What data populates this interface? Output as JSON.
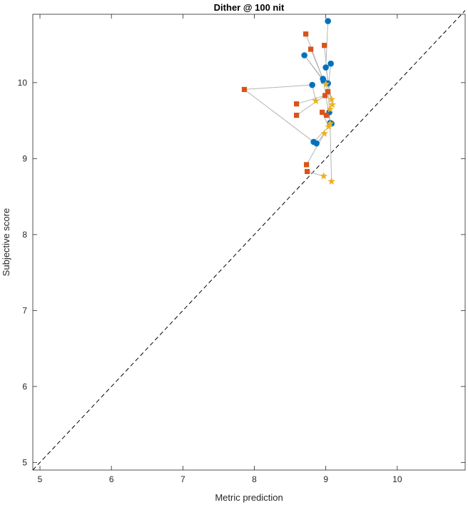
{
  "chart_data": {
    "type": "scatter",
    "title": "Dither @ 100 nit",
    "xlabel": "Metric prediction",
    "ylabel": "Subjective score",
    "xlim": [
      4.9,
      10.95
    ],
    "ylim": [
      4.9,
      10.9
    ],
    "xticks": [
      5,
      6,
      7,
      8,
      9,
      10
    ],
    "yticks": [
      5,
      6,
      7,
      8,
      9,
      10
    ],
    "grid": false,
    "box": true,
    "reference_line": {
      "style": "dashed",
      "from": [
        4.9,
        4.9
      ],
      "to": [
        10.95,
        10.95
      ],
      "color": "#000000"
    },
    "connector_color": "#b5b5b5",
    "series": [
      {
        "marker": "circle",
        "color": "#0072BD",
        "points": [
          [
            9.03,
            10.81
          ],
          [
            8.7,
            10.36
          ],
          [
            9.07,
            10.25
          ],
          [
            9.0,
            10.2
          ],
          [
            8.96,
            10.05
          ],
          [
            8.81,
            9.97
          ],
          [
            9.03,
            9.99
          ],
          [
            8.97,
            10.02
          ],
          [
            9.05,
            9.61
          ],
          [
            9.06,
            9.47
          ],
          [
            9.08,
            9.46
          ],
          [
            8.83,
            9.22
          ],
          [
            8.87,
            9.2
          ]
        ]
      },
      {
        "marker": "square",
        "color": "#D95319",
        "points": [
          [
            8.72,
            10.64
          ],
          [
            8.98,
            10.49
          ],
          [
            8.79,
            10.44
          ],
          [
            7.86,
            9.91
          ],
          [
            9.03,
            9.88
          ],
          [
            8.99,
            9.83
          ],
          [
            8.59,
            9.72
          ],
          [
            8.59,
            9.57
          ],
          [
            8.95,
            9.61
          ],
          [
            9.01,
            9.57
          ],
          [
            8.73,
            8.92
          ],
          [
            8.74,
            8.83
          ]
        ]
      },
      {
        "marker": "star",
        "color": "#EDB120",
        "points": [
          [
            9.0,
            9.98
          ],
          [
            9.08,
            9.78
          ],
          [
            8.86,
            9.76
          ],
          [
            9.09,
            9.71
          ],
          [
            9.06,
            9.65
          ],
          [
            9.06,
            9.46
          ],
          [
            9.04,
            9.42
          ],
          [
            8.98,
            9.33
          ],
          [
            8.97,
            8.77
          ],
          [
            9.08,
            8.7
          ]
        ]
      }
    ],
    "connections": [
      [
        [
          9.03,
          10.81
        ],
        [
          9.0,
          10.2
        ]
      ],
      [
        [
          8.7,
          10.36
        ],
        [
          8.98,
          10.02
        ]
      ],
      [
        [
          8.7,
          10.36
        ],
        [
          9.0,
          9.98
        ]
      ],
      [
        [
          8.72,
          10.64
        ],
        [
          8.96,
          10.05
        ]
      ],
      [
        [
          8.79,
          10.44
        ],
        [
          8.96,
          10.05
        ]
      ],
      [
        [
          8.98,
          10.49
        ],
        [
          9.03,
          9.99
        ]
      ],
      [
        [
          9.07,
          10.25
        ],
        [
          9.03,
          9.88
        ]
      ],
      [
        [
          7.86,
          9.91
        ],
        [
          8.81,
          9.97
        ]
      ],
      [
        [
          7.86,
          9.91
        ],
        [
          8.83,
          9.22
        ]
      ],
      [
        [
          8.81,
          9.97
        ],
        [
          8.86,
          9.76
        ]
      ],
      [
        [
          8.59,
          9.72
        ],
        [
          8.99,
          9.83
        ]
      ],
      [
        [
          8.59,
          9.57
        ],
        [
          8.99,
          9.83
        ]
      ],
      [
        [
          8.96,
          10.05
        ],
        [
          9.08,
          9.78
        ]
      ],
      [
        [
          9.0,
          10.2
        ],
        [
          9.09,
          9.71
        ]
      ],
      [
        [
          8.97,
          10.02
        ],
        [
          9.06,
          9.47
        ]
      ],
      [
        [
          9.03,
          9.99
        ],
        [
          9.05,
          9.61
        ]
      ],
      [
        [
          9.05,
          9.61
        ],
        [
          9.06,
          9.46
        ]
      ],
      [
        [
          8.95,
          9.61
        ],
        [
          9.04,
          9.42
        ]
      ],
      [
        [
          9.01,
          9.57
        ],
        [
          9.06,
          9.65
        ]
      ],
      [
        [
          8.87,
          9.2
        ],
        [
          8.98,
          9.33
        ]
      ],
      [
        [
          8.83,
          9.22
        ],
        [
          9.08,
          9.46
        ]
      ],
      [
        [
          9.06,
          9.47
        ],
        [
          9.08,
          8.7
        ]
      ],
      [
        [
          8.74,
          8.83
        ],
        [
          8.97,
          8.77
        ]
      ],
      [
        [
          8.73,
          8.92
        ],
        [
          8.98,
          9.33
        ]
      ]
    ]
  }
}
